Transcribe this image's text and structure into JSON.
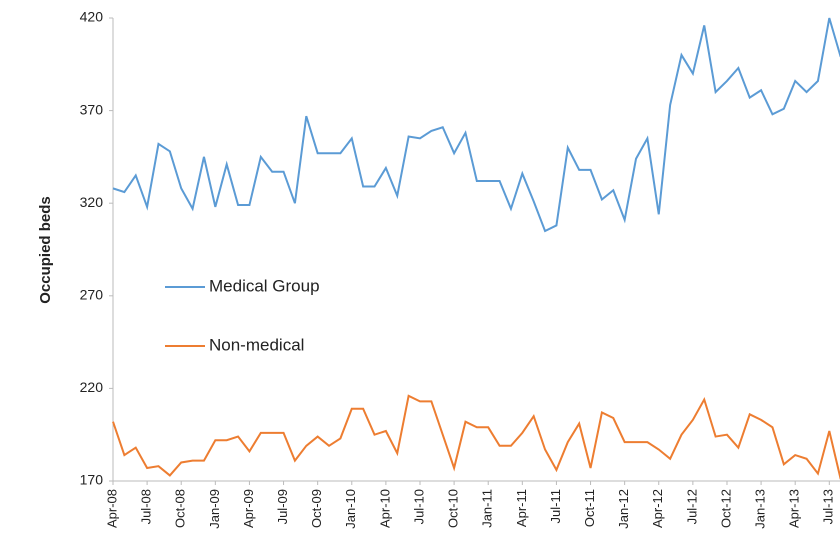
{
  "chart_data": {
    "type": "line",
    "y_label": "Occupied beds",
    "categories": [
      "Apr-08",
      null,
      null,
      "Jul-08",
      null,
      null,
      "Oct-08",
      null,
      null,
      "Jan-09",
      null,
      null,
      "Apr-09",
      null,
      null,
      "Jul-09",
      null,
      null,
      "Oct-09",
      null,
      null,
      "Jan-10",
      null,
      null,
      "Apr-10",
      null,
      null,
      "Jul-10",
      null,
      null,
      "Oct-10",
      null,
      null,
      "Jan-11",
      null,
      null,
      "Apr-11",
      null,
      null,
      "Jul-11",
      null,
      null,
      "Oct-11",
      null,
      null,
      "Jan-12",
      null,
      null,
      "Apr-12",
      null,
      null,
      "Jul-12",
      null,
      null,
      "Oct-12",
      null,
      null,
      "Jan-13",
      null,
      null,
      "Apr-13",
      null,
      null,
      "Jul-13",
      null
    ],
    "series": [
      {
        "name": "Medical Group",
        "color": "#5b9bd5",
        "values": [
          328,
          326,
          335,
          318,
          352,
          348,
          328,
          317,
          345,
          318,
          341,
          319,
          319,
          345,
          337,
          337,
          320,
          367,
          347,
          347,
          347,
          355,
          329,
          329,
          339,
          324,
          356,
          355,
          359,
          361,
          347,
          358,
          332,
          332,
          332,
          317,
          336,
          321,
          305,
          308,
          350,
          338,
          338,
          322,
          327,
          311,
          344,
          355,
          314,
          373,
          400,
          390,
          416,
          380,
          386,
          393,
          377,
          381,
          368,
          371,
          386,
          380,
          386,
          420,
          399
        ]
      },
      {
        "name": "Non-medical",
        "color": "#ed7d31",
        "values": [
          202,
          184,
          188,
          177,
          178,
          173,
          180,
          181,
          181,
          192,
          192,
          194,
          186,
          196,
          196,
          196,
          181,
          189,
          194,
          189,
          193,
          209,
          209,
          195,
          197,
          185,
          216,
          213,
          213,
          195,
          177,
          202,
          199,
          199,
          189,
          189,
          196,
          205,
          187,
          176,
          191,
          201,
          177,
          207,
          204,
          191,
          191,
          191,
          187,
          182,
          195,
          203,
          214,
          194,
          195,
          188,
          206,
          203,
          199,
          179,
          184,
          182,
          174,
          197,
          171
        ]
      }
    ],
    "ylim": [
      170,
      420
    ],
    "yticks": [
      170,
      220,
      270,
      320,
      370,
      420
    ],
    "legend_position": "center-left"
  }
}
